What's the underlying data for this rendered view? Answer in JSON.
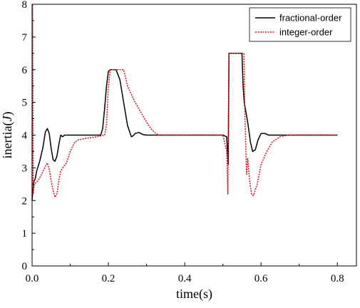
{
  "chart_data": {
    "type": "line",
    "xlabel": "time(s)",
    "ylabel_main": "inertia(",
    "ylabel_italic": "J",
    "ylabel_close": ")",
    "xlim": [
      0,
      0.85
    ],
    "ylim": [
      0,
      8
    ],
    "x_ticks": [
      0.0,
      0.2,
      0.4,
      0.6,
      0.8
    ],
    "x_tick_labels": [
      "0.0",
      "0.2",
      "0.4",
      "0.6",
      "0.8"
    ],
    "y_ticks": [
      0,
      1,
      2,
      3,
      4,
      5,
      6,
      7,
      8
    ],
    "y_tick_labels": [
      "0",
      "1",
      "2",
      "3",
      "4",
      "5",
      "6",
      "7",
      "8"
    ],
    "grid": false,
    "legend_position": "top-right",
    "series": [
      {
        "name": "fractional-order",
        "color": "#000000",
        "dash": "solid",
        "points": [
          [
            0.0,
            2.0
          ],
          [
            0.002,
            2.3
          ],
          [
            0.005,
            2.6
          ],
          [
            0.008,
            2.65
          ],
          [
            0.012,
            2.9
          ],
          [
            0.02,
            3.2
          ],
          [
            0.028,
            3.6
          ],
          [
            0.035,
            4.1
          ],
          [
            0.04,
            4.2
          ],
          [
            0.045,
            4.05
          ],
          [
            0.05,
            3.6
          ],
          [
            0.055,
            3.25
          ],
          [
            0.06,
            3.2
          ],
          [
            0.065,
            3.35
          ],
          [
            0.07,
            3.7
          ],
          [
            0.075,
            4.0
          ],
          [
            0.08,
            3.95
          ],
          [
            0.085,
            4.0
          ],
          [
            0.1,
            4.0
          ],
          [
            0.15,
            4.0
          ],
          [
            0.18,
            4.0
          ],
          [
            0.185,
            4.2
          ],
          [
            0.19,
            4.8
          ],
          [
            0.195,
            5.5
          ],
          [
            0.2,
            5.95
          ],
          [
            0.205,
            6.0
          ],
          [
            0.22,
            6.0
          ],
          [
            0.23,
            5.7
          ],
          [
            0.24,
            5.0
          ],
          [
            0.25,
            4.3
          ],
          [
            0.26,
            3.95
          ],
          [
            0.265,
            3.98
          ],
          [
            0.27,
            4.05
          ],
          [
            0.28,
            4.08
          ],
          [
            0.29,
            4.02
          ],
          [
            0.3,
            4.0
          ],
          [
            0.4,
            4.0
          ],
          [
            0.5,
            4.0
          ],
          [
            0.51,
            3.95
          ],
          [
            0.512,
            3.5
          ],
          [
            0.514,
            3.1
          ],
          [
            0.516,
            6.5
          ],
          [
            0.55,
            6.5
          ],
          [
            0.553,
            5.5
          ],
          [
            0.556,
            5.0
          ],
          [
            0.565,
            4.4
          ],
          [
            0.572,
            3.8
          ],
          [
            0.578,
            3.5
          ],
          [
            0.585,
            3.55
          ],
          [
            0.592,
            3.85
          ],
          [
            0.6,
            4.05
          ],
          [
            0.61,
            4.05
          ],
          [
            0.62,
            4.0
          ],
          [
            0.8,
            4.0
          ]
        ]
      },
      {
        "name": "integer-order",
        "color": "#e8111b",
        "dash": "2,1.5",
        "points": [
          [
            0.0,
            2.0
          ],
          [
            0.001,
            8.0
          ],
          [
            0.003,
            2.2
          ],
          [
            0.006,
            2.5
          ],
          [
            0.015,
            2.6
          ],
          [
            0.025,
            2.8
          ],
          [
            0.035,
            3.05
          ],
          [
            0.04,
            3.15
          ],
          [
            0.045,
            2.95
          ],
          [
            0.05,
            2.6
          ],
          [
            0.055,
            2.3
          ],
          [
            0.06,
            2.1
          ],
          [
            0.065,
            2.2
          ],
          [
            0.07,
            2.6
          ],
          [
            0.075,
            2.9
          ],
          [
            0.08,
            3.0
          ],
          [
            0.09,
            3.15
          ],
          [
            0.1,
            3.5
          ],
          [
            0.11,
            3.75
          ],
          [
            0.12,
            3.85
          ],
          [
            0.14,
            3.9
          ],
          [
            0.17,
            3.95
          ],
          [
            0.19,
            4.0
          ],
          [
            0.195,
            4.3
          ],
          [
            0.2,
            5.5
          ],
          [
            0.205,
            6.0
          ],
          [
            0.225,
            6.0
          ],
          [
            0.24,
            6.0
          ],
          [
            0.25,
            5.5
          ],
          [
            0.27,
            5.0
          ],
          [
            0.29,
            4.6
          ],
          [
            0.305,
            4.3
          ],
          [
            0.315,
            4.15
          ],
          [
            0.32,
            4.1
          ],
          [
            0.33,
            4.0
          ],
          [
            0.4,
            4.0
          ],
          [
            0.5,
            4.0
          ],
          [
            0.51,
            3.5
          ],
          [
            0.513,
            2.2
          ],
          [
            0.516,
            6.5
          ],
          [
            0.555,
            6.5
          ],
          [
            0.558,
            4.5
          ],
          [
            0.562,
            2.8
          ],
          [
            0.565,
            3.3
          ],
          [
            0.57,
            2.6
          ],
          [
            0.575,
            2.2
          ],
          [
            0.58,
            2.15
          ],
          [
            0.59,
            2.5
          ],
          [
            0.6,
            3.1
          ],
          [
            0.615,
            3.5
          ],
          [
            0.63,
            3.8
          ],
          [
            0.65,
            3.95
          ],
          [
            0.67,
            4.0
          ],
          [
            0.8,
            4.0
          ]
        ]
      }
    ]
  }
}
